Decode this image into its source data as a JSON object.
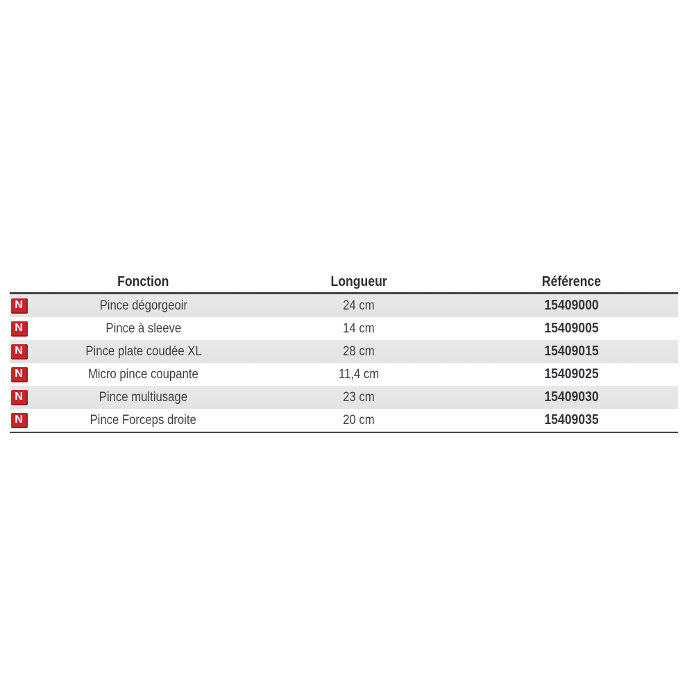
{
  "page": {
    "background": "#ffffff"
  },
  "table": {
    "columns": [
      {
        "key": "fonction",
        "label": "Fonction"
      },
      {
        "key": "longueur",
        "label": "Longueur"
      },
      {
        "key": "reference",
        "label": "Référence"
      }
    ],
    "badge_label": "N",
    "rows": [
      {
        "badge": "N",
        "fonction": "Pince dégorgeoir",
        "longueur": "24 cm",
        "reference": "15409000"
      },
      {
        "badge": "N",
        "fonction": "Pince à sleeve",
        "longueur": "14 cm",
        "reference": "15409005"
      },
      {
        "badge": "N",
        "fonction": "Pince plate coudée XL",
        "longueur": "28 cm",
        "reference": "15409015"
      },
      {
        "badge": "N",
        "fonction": "Micro pince coupante",
        "longueur": "11,4 cm",
        "reference": "15409025"
      },
      {
        "badge": "N",
        "fonction": "Pince multiusage",
        "longueur": "23 cm",
        "reference": "15409030"
      },
      {
        "badge": "N",
        "fonction": "Pince Forceps droite",
        "longueur": "20 cm",
        "reference": "15409035"
      }
    ],
    "colors": {
      "badge_red": "#c5262c",
      "badge_edge": "#9a1c21",
      "row_alt_gray": "#e7e7e7",
      "rule_dark": "#454545",
      "header_text": "#2d2d2d",
      "body_text": "#3f3f3f",
      "reference_text": "#34343c"
    }
  }
}
